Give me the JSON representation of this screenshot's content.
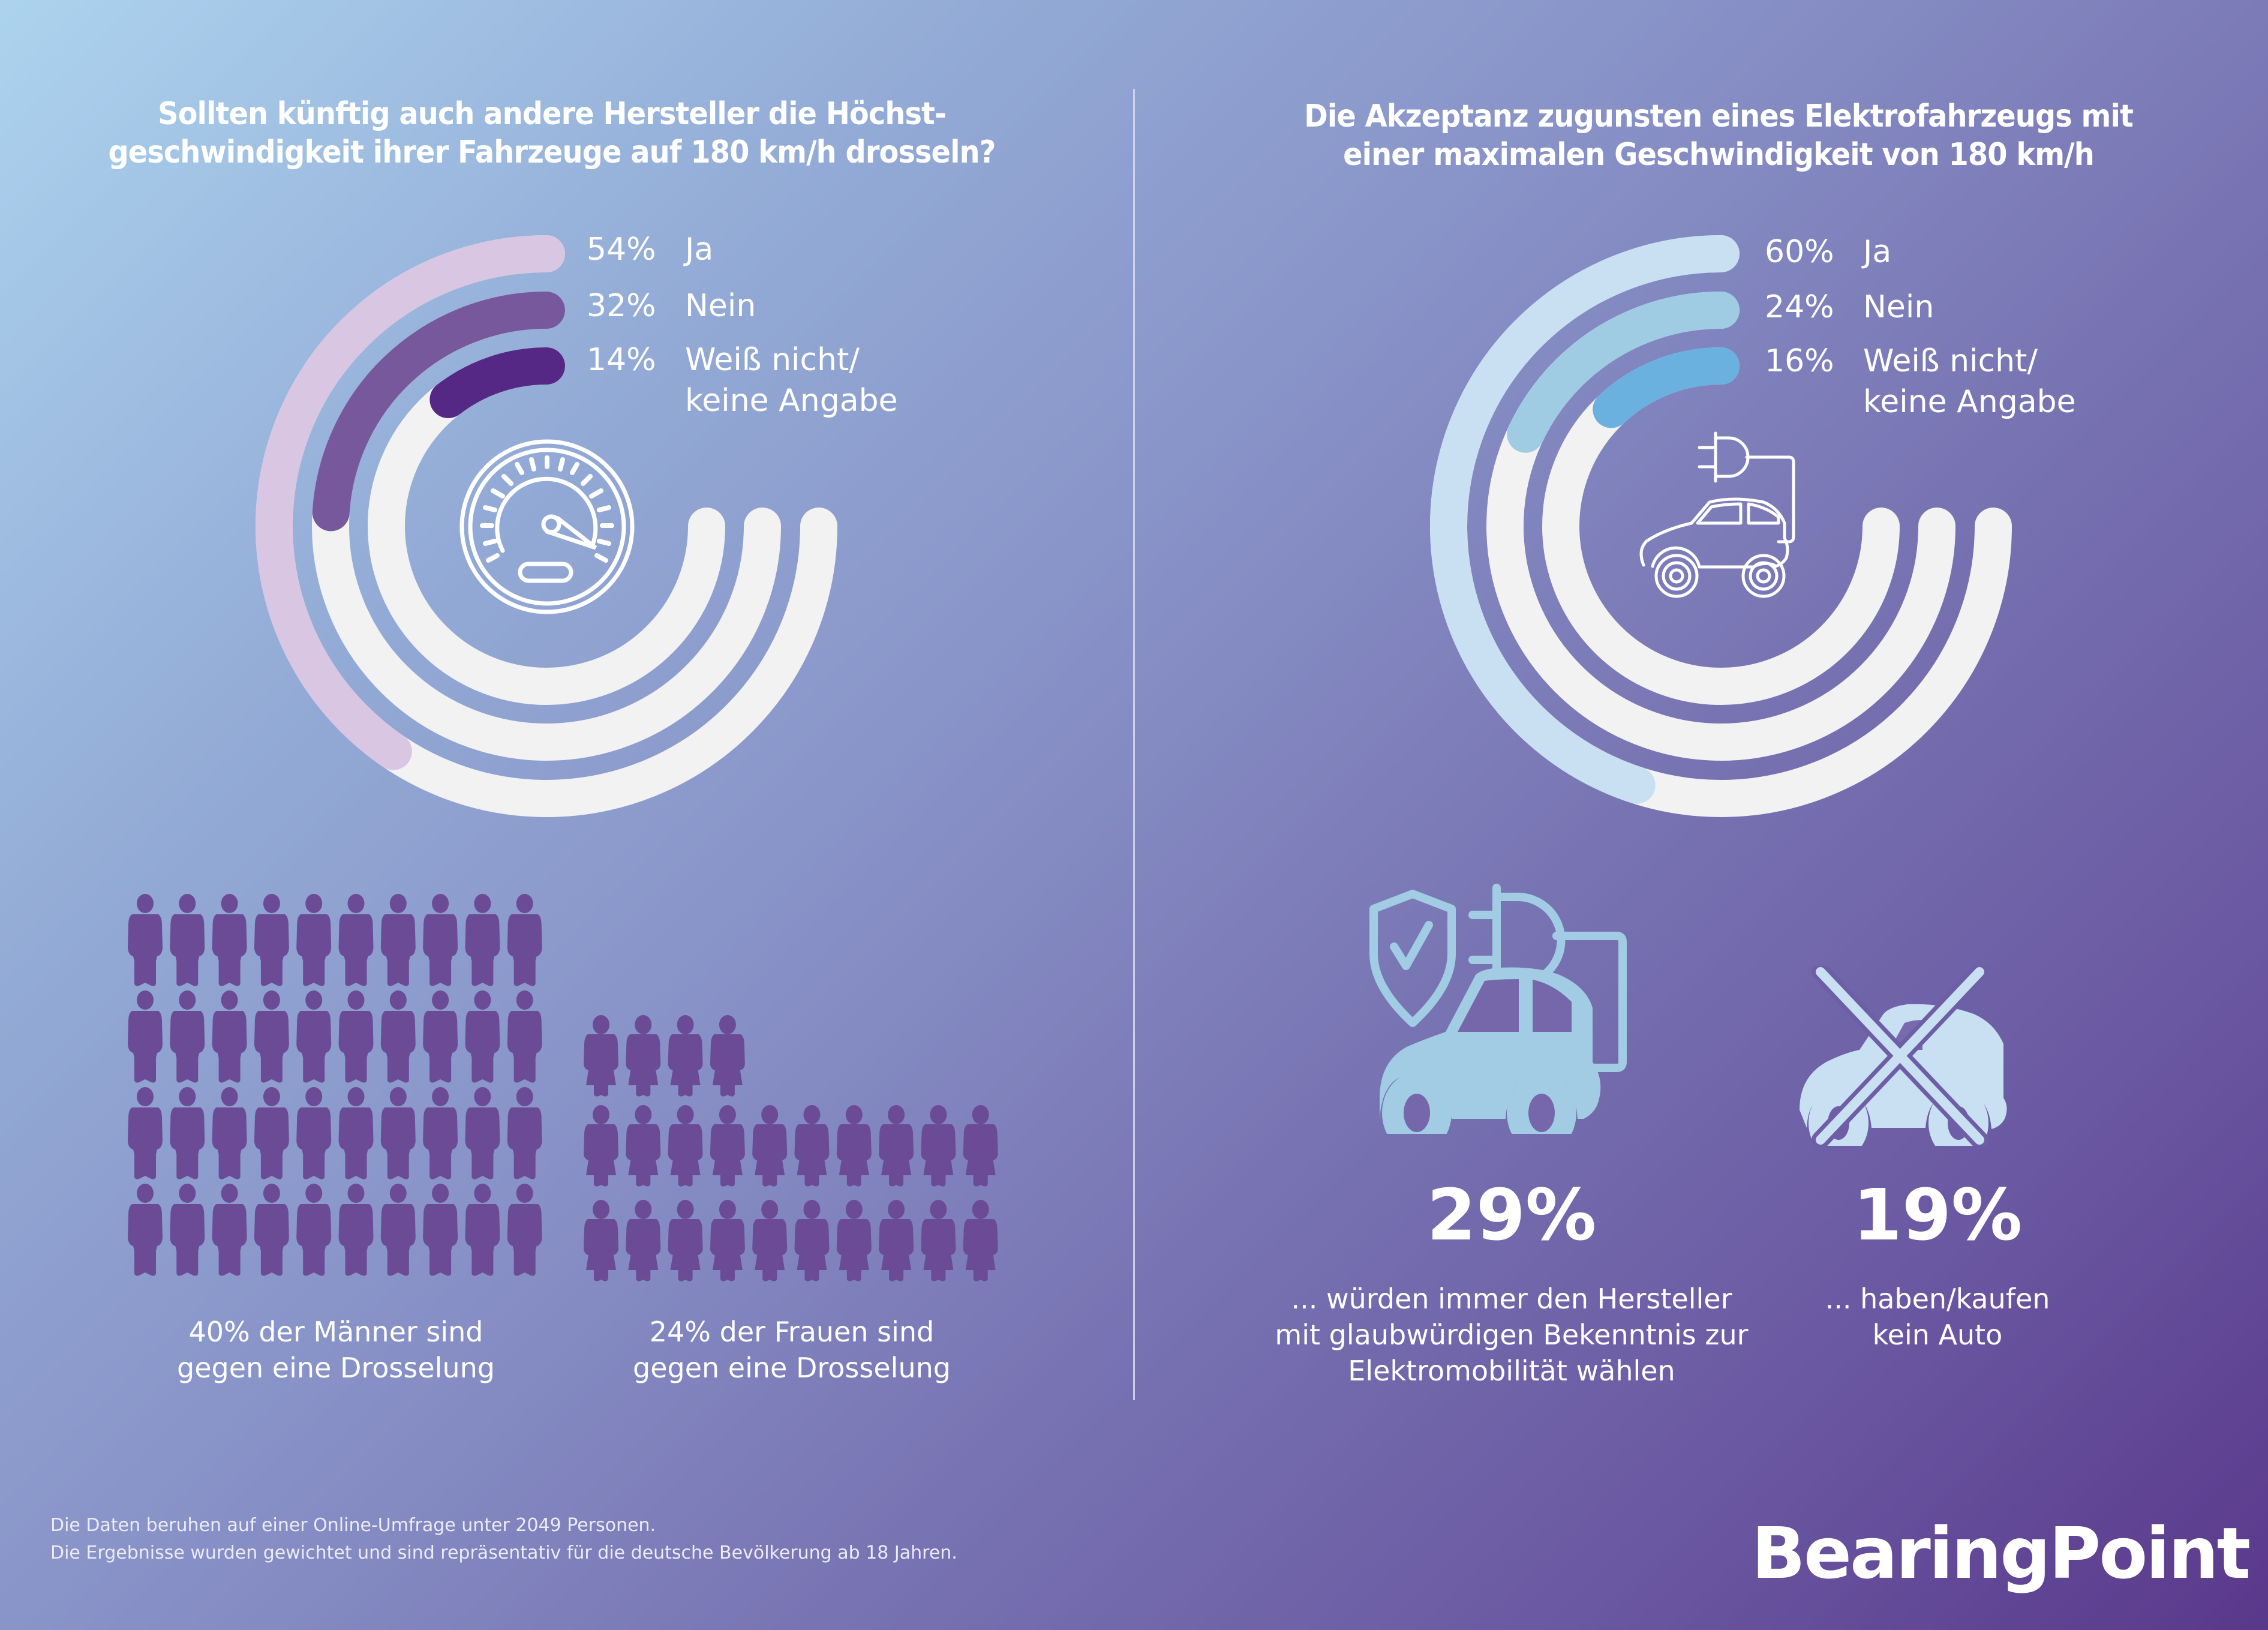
{
  "brand": {
    "name": "BearingPoint"
  },
  "colors": {
    "track": "#f2f2f2",
    "people": "#6b4b96",
    "icon_light_blue": "#a1cce3",
    "white": "#ffffff"
  },
  "left_panel": {
    "title_line1": "Sollten künftig auch andere Hersteller die Höchst-",
    "title_line2": "geschwindigkeit ihrer Fahrzeuge auf 180 km/h drosseln?",
    "center_icon": "speedometer-icon",
    "legend": [
      {
        "pct": "54%",
        "label_line1": "Ja",
        "label_line2": ""
      },
      {
        "pct": "32%",
        "label_line1": "Nein",
        "label_line2": ""
      },
      {
        "pct": "14%",
        "label_line1": "Weiß nicht/",
        "label_line2": "keine Angabe"
      }
    ],
    "men_caption_line1": "40% der Männer sind",
    "men_caption_line2": "gegen eine Drosselung",
    "women_caption_line1": "24% der Frauen sind",
    "women_caption_line2": "gegen eine Drosselung"
  },
  "right_panel": {
    "title_line1": "Die Akzeptanz zugunsten eines Elektrofahrzeugs mit",
    "title_line2": "einer maximalen Geschwindigkeit von 180 km/h",
    "center_icon": "electric-car-icon",
    "legend": [
      {
        "pct": "60%",
        "label_line1": "Ja",
        "label_line2": ""
      },
      {
        "pct": "24%",
        "label_line1": "Nein",
        "label_line2": ""
      },
      {
        "pct": "16%",
        "label_line1": "Weiß nicht/",
        "label_line2": "keine Angabe"
      }
    ],
    "stat1": {
      "icon": "trusted-electric-car-icon",
      "value": "29%",
      "caption_line1": "... würden immer den Hersteller",
      "caption_line2": "mit glaubwürdigen Bekenntnis zur",
      "caption_line3": "Elektromobilität wählen"
    },
    "stat2": {
      "icon": "no-car-icon",
      "value": "19%",
      "caption_line1": "... haben/kaufen",
      "caption_line2": "kein Auto"
    }
  },
  "footer": {
    "line1": "Die Daten beruhen auf einer Online-Umfrage unter 2049 Personen.",
    "line2": "Die Ergebnisse wurden gewichtet und sind repräsentativ für die deutsche Bevölkerung ab 18 Jahren."
  },
  "chart_data": [
    {
      "type": "pie",
      "subtype": "radial-bar",
      "title": "Sollten künftig auch andere Hersteller die Höchstgeschwindigkeit ihrer Fahrzeuge auf 180 km/h drosseln?",
      "categories": [
        "Ja",
        "Nein",
        "Weiß nicht/keine Angabe"
      ],
      "values": [
        54,
        32,
        14
      ],
      "unit": "%",
      "max": 100,
      "colors": [
        "#d8c6e2",
        "#77589d",
        "#542884"
      ],
      "legend": "top-right"
    },
    {
      "type": "pie",
      "subtype": "radial-bar",
      "title": "Die Akzeptanz zugunsten eines Elektrofahrzeugs mit einer maximalen Geschwindigkeit von 180 km/h",
      "categories": [
        "Ja",
        "Nein",
        "Weiß nicht/keine Angabe"
      ],
      "values": [
        60,
        24,
        16
      ],
      "unit": "%",
      "max": 100,
      "colors": [
        "#c8e0f2",
        "#9fcbe3",
        "#6ab1df"
      ],
      "legend": "top-right"
    },
    {
      "type": "table",
      "subtype": "pictogram",
      "title": "Gegen eine Drosselung",
      "categories": [
        "Männer",
        "Frauen"
      ],
      "values": [
        40,
        24
      ],
      "unit": "%"
    },
    {
      "type": "table",
      "subtype": "stat",
      "categories": [
        "würden immer den Hersteller mit glaubwürdigen Bekenntnis zur Elektromobilität wählen",
        "haben/kaufen kein Auto"
      ],
      "values": [
        29,
        19
      ],
      "unit": "%"
    }
  ]
}
